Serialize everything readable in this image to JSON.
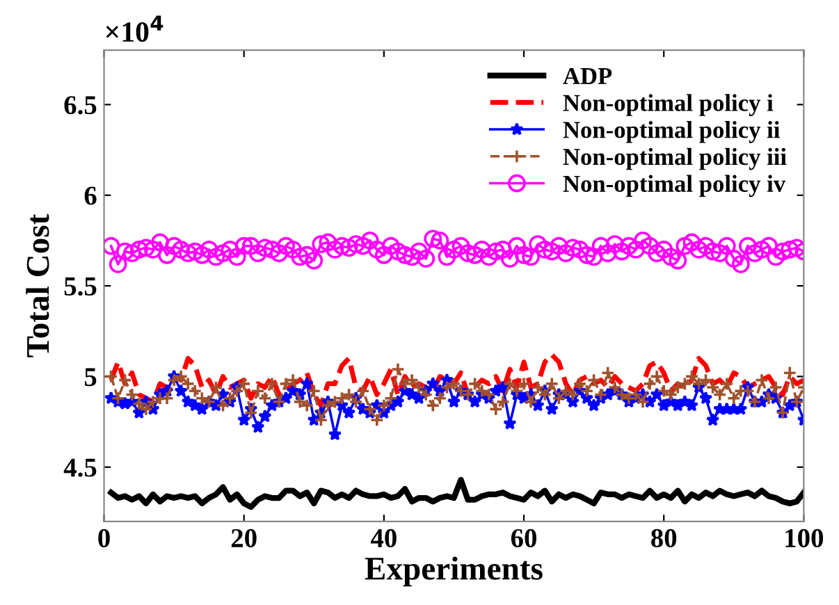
{
  "chart_data": {
    "type": "line",
    "xlabel": "Experiments",
    "ylabel": "Total Cost",
    "annotations": [
      "×10$^{4}$"
    ],
    "x": [
      1,
      2,
      3,
      4,
      5,
      6,
      7,
      8,
      9,
      10,
      11,
      12,
      13,
      14,
      15,
      16,
      17,
      18,
      19,
      20,
      21,
      22,
      23,
      24,
      25,
      26,
      27,
      28,
      29,
      30,
      31,
      32,
      33,
      34,
      35,
      36,
      37,
      38,
      39,
      40,
      41,
      42,
      43,
      44,
      45,
      46,
      47,
      48,
      49,
      50,
      51,
      52,
      53,
      54,
      55,
      56,
      57,
      58,
      59,
      60,
      61,
      62,
      63,
      64,
      65,
      66,
      67,
      68,
      69,
      70,
      71,
      72,
      73,
      74,
      75,
      76,
      77,
      78,
      79,
      80,
      81,
      82,
      83,
      84,
      85,
      86,
      87,
      88,
      89,
      90,
      91,
      92,
      93,
      94,
      95,
      96,
      97,
      98,
      99,
      100
    ],
    "xlim": [
      0,
      100
    ],
    "xticks": [
      0,
      20,
      40,
      60,
      80,
      100
    ],
    "ylim": [
      4.2,
      6.8
    ],
    "yticks": [
      4.5,
      5,
      5.5,
      6,
      6.5
    ],
    "grid": false,
    "legend": "top right",
    "series": [
      {
        "name": "ADP",
        "color": "#000000",
        "marker": "none",
        "line_style": "solid",
        "values": [
          4.36,
          4.33,
          4.34,
          4.32,
          4.34,
          4.3,
          4.35,
          4.31,
          4.34,
          4.33,
          4.34,
          4.33,
          4.34,
          4.3,
          4.33,
          4.35,
          4.39,
          4.32,
          4.35,
          4.3,
          4.28,
          4.32,
          4.34,
          4.33,
          4.33,
          4.37,
          4.37,
          4.34,
          4.36,
          4.3,
          4.37,
          4.36,
          4.33,
          4.35,
          4.33,
          4.37,
          4.35,
          4.34,
          4.34,
          4.35,
          4.33,
          4.34,
          4.38,
          4.31,
          4.33,
          4.33,
          4.31,
          4.33,
          4.34,
          4.33,
          4.43,
          4.32,
          4.32,
          4.34,
          4.35,
          4.35,
          4.36,
          4.34,
          4.33,
          4.32,
          4.36,
          4.34,
          4.37,
          4.31,
          4.35,
          4.33,
          4.35,
          4.34,
          4.32,
          4.3,
          4.36,
          4.35,
          4.35,
          4.33,
          4.35,
          4.34,
          4.33,
          4.37,
          4.33,
          4.35,
          4.33,
          4.37,
          4.31,
          4.35,
          4.33,
          4.36,
          4.34,
          4.37,
          4.35,
          4.34,
          4.35,
          4.36,
          4.34,
          4.37,
          4.34,
          4.33,
          4.31,
          4.3,
          4.31,
          4.36
        ]
      },
      {
        "name": "Non-optimal policy i",
        "color": "#ff0000",
        "marker": "none",
        "line_style": "dashed",
        "values": [
          4.98,
          5.08,
          4.96,
          5.02,
          4.9,
          4.88,
          4.86,
          4.96,
          4.94,
          5.0,
          4.98,
          5.1,
          5.06,
          4.94,
          4.98,
          4.9,
          5.0,
          4.94,
          4.96,
          4.98,
          4.88,
          4.96,
          4.94,
          5.0,
          4.9,
          4.92,
          4.96,
          4.98,
          5.02,
          4.9,
          4.84,
          4.96,
          4.96,
          5.06,
          5.1,
          4.94,
          4.92,
          5.0,
          4.9,
          4.96,
          5.04,
          4.9,
          5.0,
          4.94,
          4.96,
          4.94,
          4.92,
          5.0,
          4.98,
          4.96,
          5.02,
          4.9,
          4.94,
          4.98,
          4.96,
          5.0,
          4.92,
          5.04,
          4.94,
          5.08,
          4.94,
          4.96,
          5.08,
          5.12,
          5.08,
          4.96,
          4.9,
          4.98,
          5.0,
          4.96,
          4.98,
          4.94,
          5.0,
          4.96,
          4.94,
          4.92,
          4.96,
          5.06,
          5.08,
          5.02,
          4.92,
          4.96,
          4.94,
          4.98,
          5.1,
          5.06,
          4.96,
          4.98,
          4.94,
          5.02,
          5.0,
          4.94,
          4.96,
          4.98,
          5.0,
          4.94,
          4.9,
          5.0,
          4.96,
          4.98
        ]
      },
      {
        "name": "Non-optimal policy ii",
        "color": "#0000ff",
        "marker": "star",
        "line_style": "solid",
        "values": [
          4.88,
          4.86,
          4.85,
          4.86,
          4.8,
          4.86,
          4.82,
          4.9,
          4.92,
          5.0,
          4.92,
          4.86,
          4.84,
          4.82,
          4.86,
          4.84,
          4.9,
          4.86,
          4.94,
          4.76,
          4.82,
          4.72,
          4.78,
          4.84,
          4.86,
          4.88,
          4.92,
          4.9,
          4.96,
          4.76,
          4.8,
          4.86,
          4.68,
          4.84,
          4.8,
          4.88,
          4.82,
          4.8,
          4.84,
          4.8,
          4.84,
          4.86,
          4.92,
          4.9,
          4.88,
          4.92,
          4.96,
          4.92,
          4.98,
          4.86,
          4.92,
          4.9,
          4.86,
          4.9,
          4.88,
          4.92,
          4.94,
          4.74,
          4.9,
          4.88,
          4.9,
          4.84,
          4.92,
          4.82,
          4.9,
          4.9,
          4.86,
          4.92,
          4.88,
          4.84,
          4.88,
          4.9,
          4.92,
          4.9,
          4.86,
          4.88,
          4.9,
          4.86,
          4.9,
          4.84,
          4.86,
          4.84,
          4.86,
          4.84,
          4.94,
          4.88,
          4.76,
          4.82,
          4.82,
          4.82,
          4.82,
          4.94,
          4.86,
          4.86,
          4.9,
          4.88,
          4.8,
          4.84,
          4.86,
          4.76
        ]
      },
      {
        "name": "Non-optimal policy iii",
        "color": "#a0522d",
        "marker": "cross",
        "line_style": "dashed",
        "values": [
          5.0,
          4.88,
          4.98,
          4.9,
          4.85,
          4.82,
          4.86,
          4.88,
          4.88,
          4.98,
          5.0,
          4.96,
          4.92,
          4.88,
          4.86,
          4.94,
          4.84,
          4.88,
          4.92,
          4.96,
          4.8,
          4.92,
          4.88,
          4.96,
          4.86,
          4.96,
          4.98,
          4.86,
          4.84,
          4.92,
          4.76,
          4.84,
          4.86,
          4.88,
          4.9,
          4.86,
          4.92,
          4.82,
          4.76,
          4.84,
          4.88,
          5.04,
          4.96,
          4.98,
          4.94,
          4.9,
          4.84,
          4.88,
          4.94,
          4.96,
          4.92,
          4.9,
          4.96,
          4.92,
          4.9,
          4.82,
          4.86,
          4.96,
          4.92,
          4.96,
          4.86,
          4.94,
          4.9,
          4.96,
          4.88,
          4.92,
          4.9,
          4.96,
          4.92,
          4.98,
          4.9,
          5.02,
          4.94,
          4.9,
          4.88,
          4.9,
          4.86,
          4.96,
          5.0,
          4.92,
          4.9,
          4.94,
          4.96,
          5.0,
          4.96,
          4.98,
          4.94,
          4.9,
          4.96,
          4.88,
          4.92,
          4.92,
          4.86,
          4.98,
          4.88,
          4.94,
          4.8,
          5.02,
          4.86,
          4.94
        ]
      },
      {
        "name": "Non-optimal policy iv",
        "color": "#ff00ff",
        "marker": "circle",
        "line_style": "solid",
        "values": [
          5.72,
          5.62,
          5.69,
          5.68,
          5.7,
          5.71,
          5.7,
          5.74,
          5.67,
          5.72,
          5.7,
          5.68,
          5.69,
          5.67,
          5.7,
          5.66,
          5.68,
          5.7,
          5.66,
          5.72,
          5.72,
          5.68,
          5.71,
          5.7,
          5.68,
          5.72,
          5.7,
          5.66,
          5.67,
          5.64,
          5.73,
          5.74,
          5.7,
          5.72,
          5.71,
          5.73,
          5.72,
          5.75,
          5.7,
          5.67,
          5.72,
          5.69,
          5.67,
          5.66,
          5.69,
          5.65,
          5.76,
          5.75,
          5.66,
          5.7,
          5.72,
          5.68,
          5.67,
          5.7,
          5.66,
          5.69,
          5.7,
          5.65,
          5.72,
          5.67,
          5.66,
          5.73,
          5.7,
          5.69,
          5.72,
          5.68,
          5.71,
          5.7,
          5.67,
          5.66,
          5.72,
          5.68,
          5.73,
          5.69,
          5.72,
          5.7,
          5.75,
          5.72,
          5.68,
          5.7,
          5.66,
          5.64,
          5.72,
          5.74,
          5.7,
          5.72,
          5.69,
          5.68,
          5.72,
          5.65,
          5.62,
          5.72,
          5.68,
          5.7,
          5.72,
          5.66,
          5.69,
          5.7,
          5.71,
          5.69
        ]
      }
    ]
  }
}
